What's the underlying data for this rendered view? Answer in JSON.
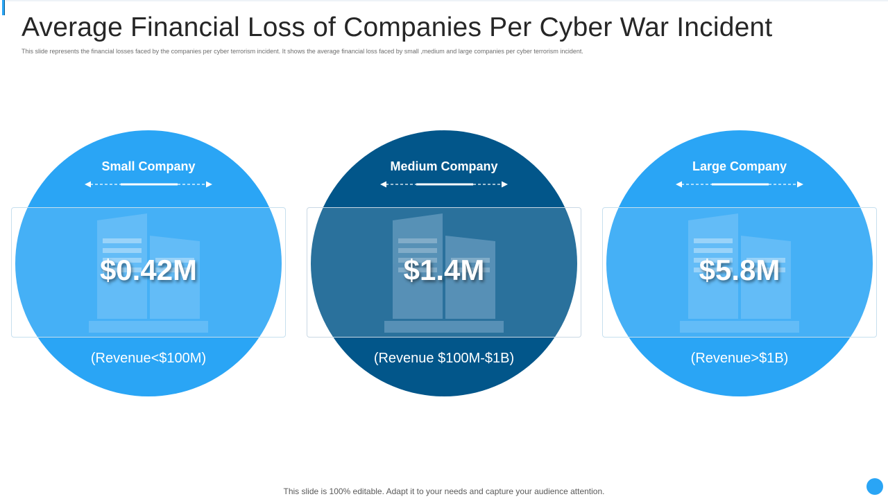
{
  "slide": {
    "title": "Average Financial Loss of Companies Per Cyber War Incident",
    "subtitle": "This slide represents the financial losses faced by the companies per cyber terrorism incident. It shows the average financial loss faced by small ,medium  and large companies per cyber terrorism incident.",
    "footer": "This slide is 100% editable. Adapt it to your  needs and capture your audience attention."
  },
  "colors": {
    "light_blue": "#2aa5f5",
    "dark_blue": "#02568a",
    "building_light": "#7cc6f8",
    "building_dark": "#5a8db5"
  },
  "companies": [
    {
      "label": "Small Company",
      "value": "$0.42M",
      "revenue": "(Revenue<$100M)",
      "style": "light",
      "icon": "building-icon"
    },
    {
      "label": "Medium Company",
      "value": "$1.4M",
      "revenue": "(Revenue $100M-$1B)",
      "style": "dark",
      "icon": "building-icon"
    },
    {
      "label": "Large Company",
      "value": "$5.8M",
      "revenue": "(Revenue>$1B)",
      "style": "light",
      "icon": "building-icon"
    }
  ]
}
